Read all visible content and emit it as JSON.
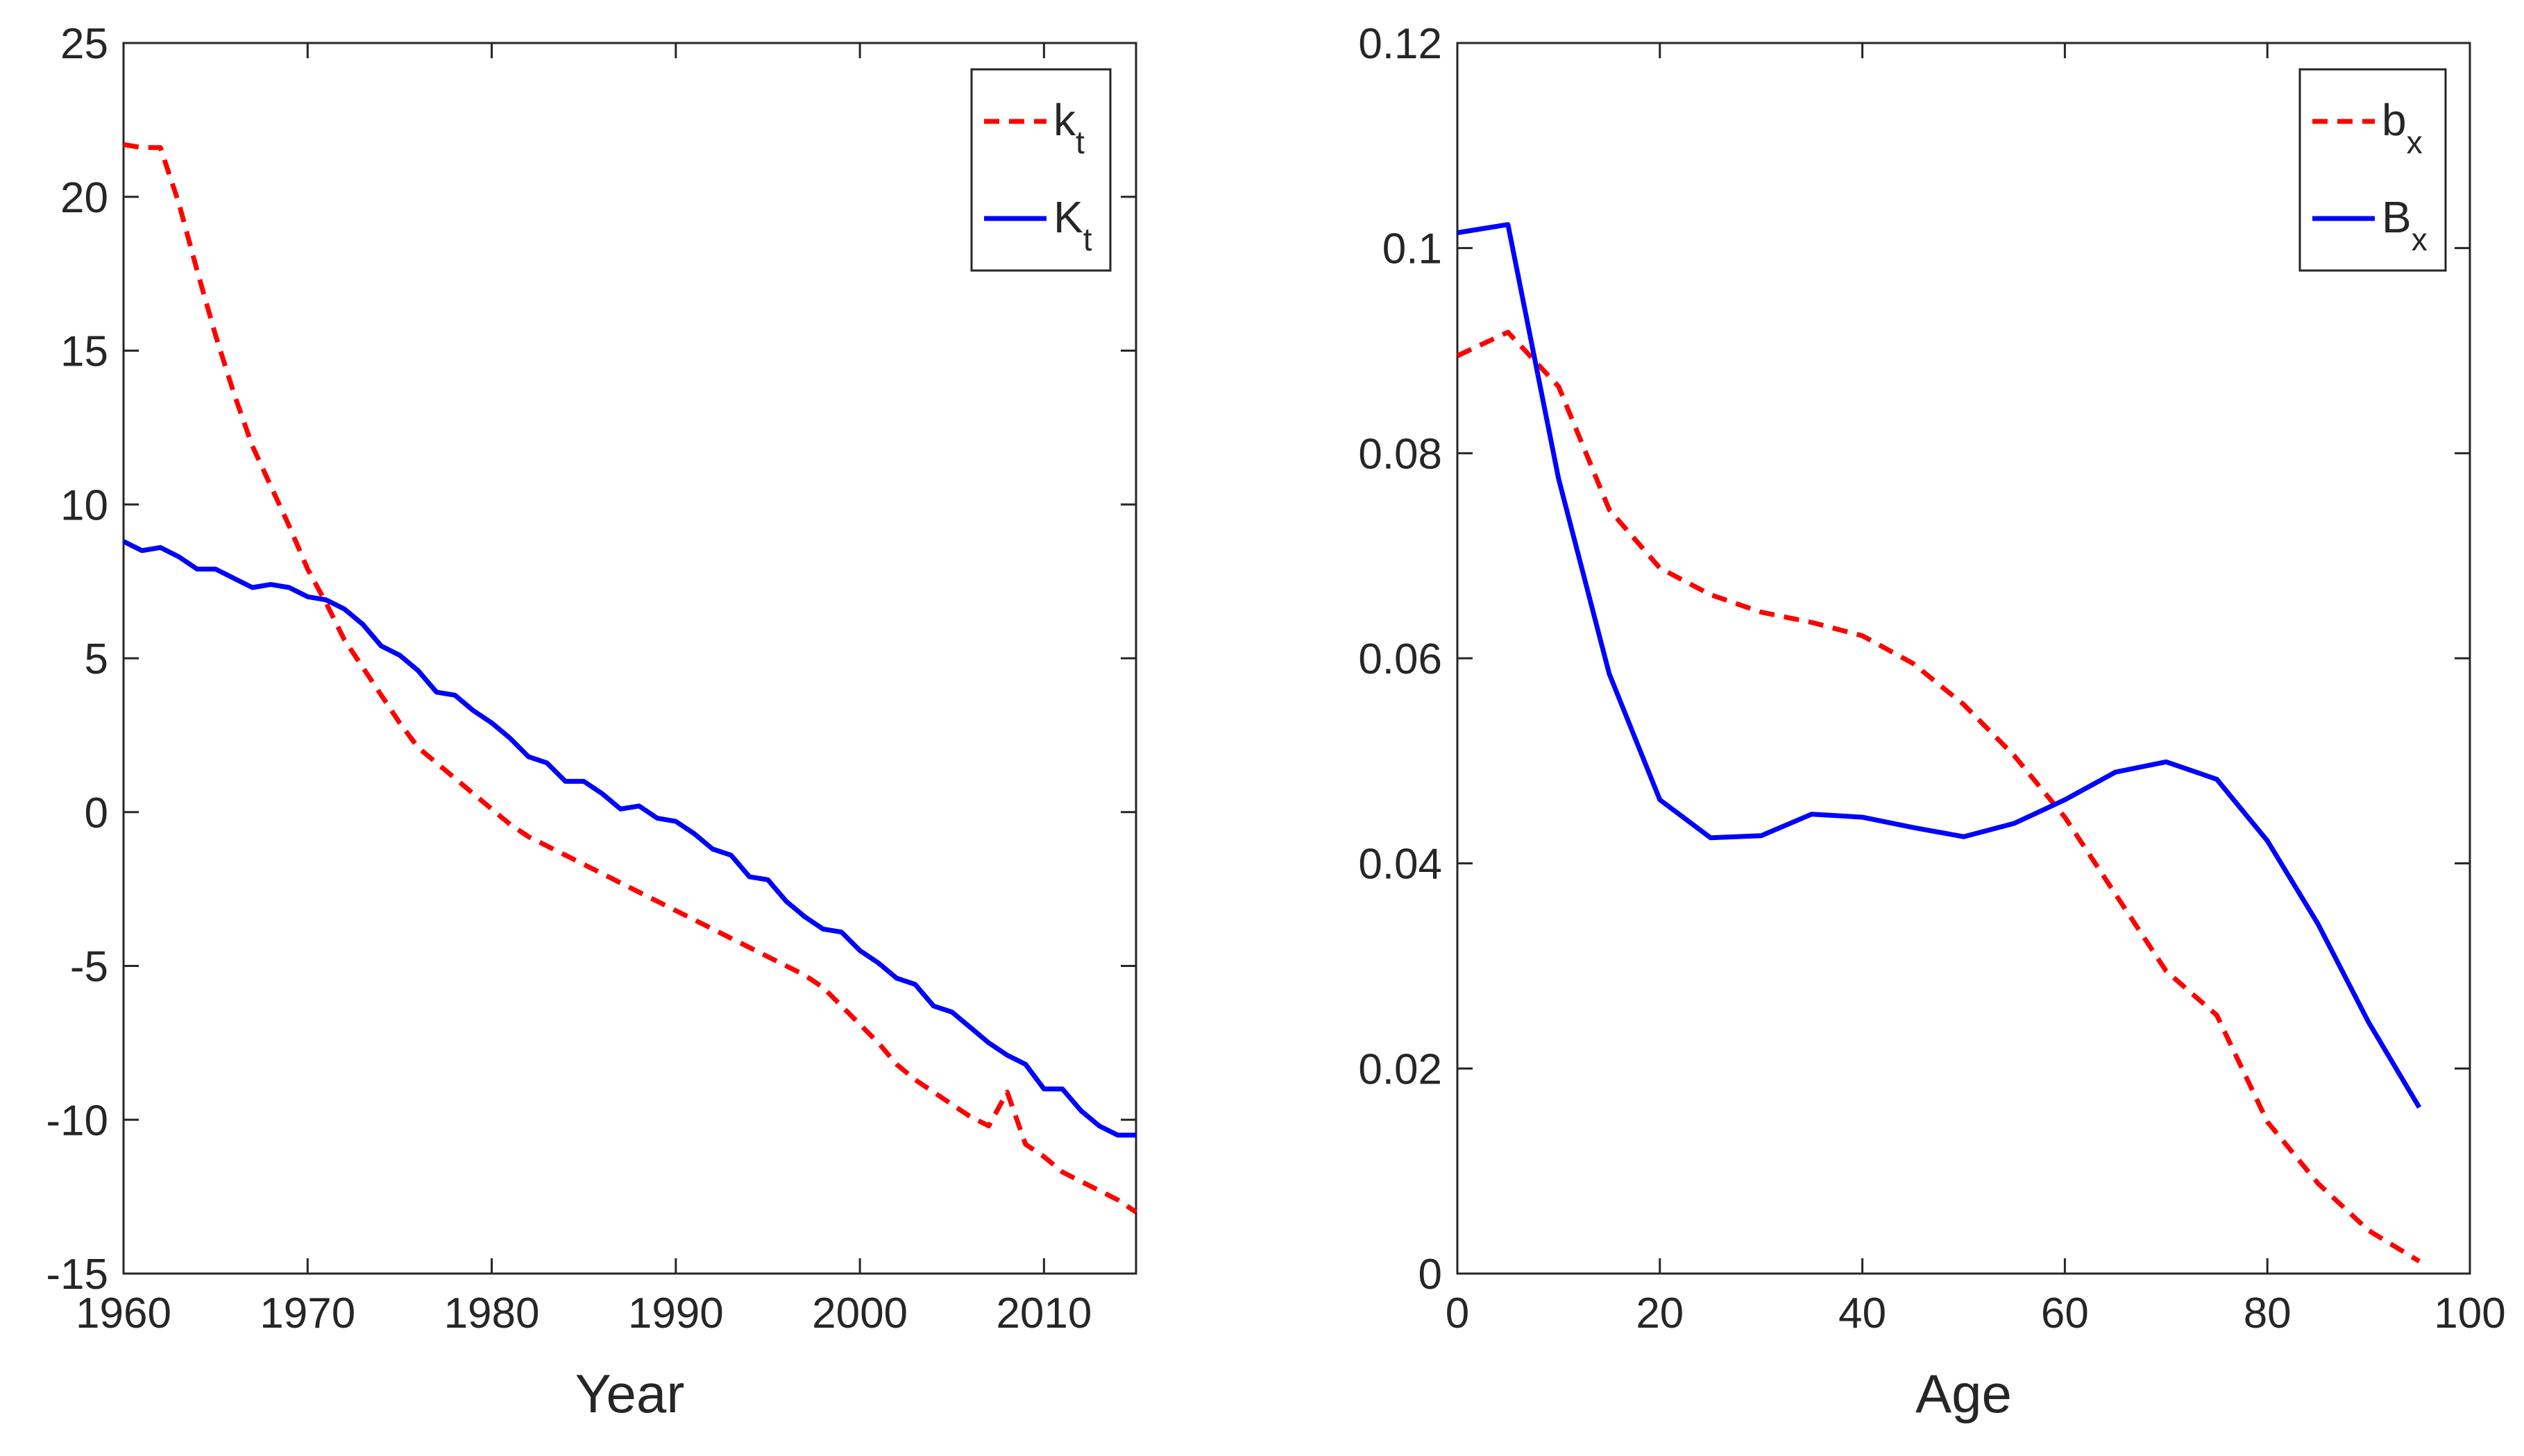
{
  "chart_data": [
    {
      "type": "line",
      "xlabel": "Year",
      "ylabel": "",
      "xlim": [
        1960,
        2015
      ],
      "ylim": [
        -15,
        25
      ],
      "xticks": [
        "1960",
        "1970",
        "1980",
        "1990",
        "2000",
        "2010"
      ],
      "yticks": [
        "-15",
        "-10",
        "-5",
        "0",
        "5",
        "10",
        "15",
        "20",
        "25"
      ],
      "legend": {
        "position": "top-right",
        "entries": [
          {
            "main": "k",
            "sub": "t"
          },
          {
            "main": "K",
            "sub": "t"
          }
        ]
      },
      "series": [
        {
          "name": "k_t",
          "color": "#ff0000",
          "style": "dashed",
          "x": [
            1960,
            1961,
            1962,
            1963,
            1964,
            1965,
            1966,
            1967,
            1968,
            1969,
            1970,
            1971,
            1972,
            1973,
            1974,
            1975,
            1976,
            1977,
            1978,
            1979,
            1980,
            1981,
            1982,
            1983,
            1984,
            1985,
            1986,
            1987,
            1988,
            1989,
            1990,
            1991,
            1992,
            1993,
            1994,
            1995,
            1996,
            1997,
            1998,
            1999,
            2000,
            2001,
            2002,
            2003,
            2004,
            2005,
            2006,
            2007,
            2008,
            2009,
            2010,
            2011,
            2012,
            2013,
            2014,
            2015
          ],
          "y": [
            21.7,
            21.6,
            21.6,
            19.8,
            17.6,
            15.5,
            13.6,
            11.9,
            10.6,
            9.3,
            7.9,
            6.8,
            5.6,
            4.7,
            3.8,
            2.9,
            2.1,
            1.6,
            1.1,
            0.6,
            0.1,
            -0.4,
            -0.8,
            -1.1,
            -1.4,
            -1.7,
            -2.0,
            -2.3,
            -2.6,
            -2.9,
            -3.2,
            -3.5,
            -3.8,
            -4.1,
            -4.4,
            -4.7,
            -5.0,
            -5.3,
            -5.7,
            -6.3,
            -6.9,
            -7.5,
            -8.2,
            -8.7,
            -9.1,
            -9.5,
            -9.9,
            -10.2,
            -9.1,
            -10.8,
            -11.2,
            -11.7,
            -12.0,
            -12.3,
            -12.6,
            -13.0
          ]
        },
        {
          "name": "K_t",
          "color": "#0000ff",
          "style": "solid",
          "x": [
            1960,
            1961,
            1962,
            1963,
            1964,
            1965,
            1966,
            1967,
            1968,
            1969,
            1970,
            1971,
            1972,
            1973,
            1974,
            1975,
            1976,
            1977,
            1978,
            1979,
            1980,
            1981,
            1982,
            1983,
            1984,
            1985,
            1986,
            1987,
            1988,
            1989,
            1990,
            1991,
            1992,
            1993,
            1994,
            1995,
            1996,
            1997,
            1998,
            1999,
            2000,
            2001,
            2002,
            2003,
            2004,
            2005,
            2006,
            2007,
            2008,
            2009,
            2010,
            2011,
            2012,
            2013,
            2014,
            2015
          ],
          "y": [
            8.8,
            8.5,
            8.6,
            8.3,
            7.9,
            7.9,
            7.6,
            7.3,
            7.4,
            7.3,
            7.0,
            6.9,
            6.6,
            6.1,
            5.4,
            5.1,
            4.6,
            3.9,
            3.8,
            3.3,
            2.9,
            2.4,
            1.8,
            1.6,
            1.0,
            1.0,
            0.6,
            0.1,
            0.2,
            -0.2,
            -0.3,
            -0.7,
            -1.2,
            -1.4,
            -2.1,
            -2.2,
            -2.9,
            -3.4,
            -3.8,
            -3.9,
            -4.5,
            -4.9,
            -5.4,
            -5.6,
            -6.3,
            -6.5,
            -7.0,
            -7.5,
            -7.9,
            -8.2,
            -9.0,
            -9.0,
            -9.7,
            -10.2,
            -10.5,
            -10.5
          ]
        }
      ]
    },
    {
      "type": "line",
      "xlabel": "Age",
      "ylabel": "",
      "xlim": [
        0,
        100
      ],
      "ylim": [
        0,
        0.12
      ],
      "xticks": [
        "0",
        "20",
        "40",
        "60",
        "80",
        "100"
      ],
      "yticks": [
        "0",
        "0.02",
        "0.04",
        "0.06",
        "0.08",
        "0.1",
        "0.12"
      ],
      "legend": {
        "position": "top-right",
        "entries": [
          {
            "main": "b",
            "sub": "x"
          },
          {
            "main": "B",
            "sub": "x"
          }
        ]
      },
      "series": [
        {
          "name": "b_x",
          "color": "#ff0000",
          "style": "dashed",
          "x": [
            0,
            5,
            10,
            15,
            20,
            25,
            30,
            35,
            40,
            45,
            50,
            55,
            60,
            65,
            70,
            75,
            80,
            85,
            90,
            95
          ],
          "y": [
            0.0895,
            0.0918,
            0.0865,
            0.0745,
            0.0688,
            0.0662,
            0.0645,
            0.0635,
            0.0622,
            0.0595,
            0.0555,
            0.0505,
            0.0445,
            0.037,
            0.0295,
            0.0252,
            0.0148,
            0.0088,
            0.0042,
            0.0012
          ]
        },
        {
          "name": "B_x",
          "color": "#0000ff",
          "style": "solid",
          "x": [
            0,
            5,
            10,
            15,
            20,
            25,
            30,
            35,
            40,
            45,
            50,
            55,
            60,
            65,
            70,
            75,
            80,
            85,
            90,
            95
          ],
          "y": [
            0.1015,
            0.1023,
            0.0775,
            0.0585,
            0.0462,
            0.0425,
            0.0427,
            0.0448,
            0.0445,
            0.0435,
            0.0426,
            0.0439,
            0.0462,
            0.0489,
            0.0499,
            0.0482,
            0.0422,
            0.0341,
            0.0245,
            0.0162
          ]
        }
      ]
    }
  ]
}
